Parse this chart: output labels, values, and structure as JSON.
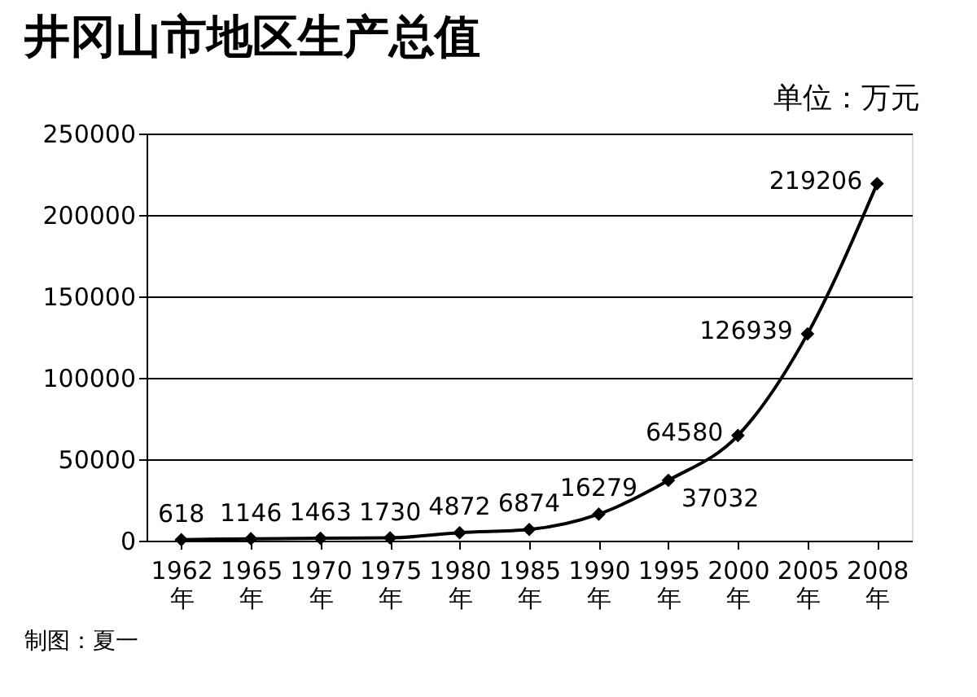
{
  "chart_data": {
    "type": "line",
    "title": "井冈山市地区生产总值",
    "subtitle": "单位：万元",
    "annotations": [
      "制图：夏一"
    ],
    "categories": [
      "1962年",
      "1965年",
      "1970年",
      "1975年",
      "1980年",
      "1985年",
      "1990年",
      "1995年",
      "2000年",
      "2005年",
      "2008年"
    ],
    "series": [
      {
        "color": "#000000",
        "values": [
          618,
          1146,
          1463,
          1730,
          4872,
          6874,
          16279,
          37032,
          64580,
          126939,
          219206
        ]
      }
    ],
    "ylim": [
      0,
      250000
    ],
    "yticks": [
      0,
      50000,
      100000,
      150000,
      200000,
      250000
    ],
    "grid": "y",
    "marker": "diamond",
    "line_style": "solid",
    "data_labels": true,
    "legend": false
  }
}
